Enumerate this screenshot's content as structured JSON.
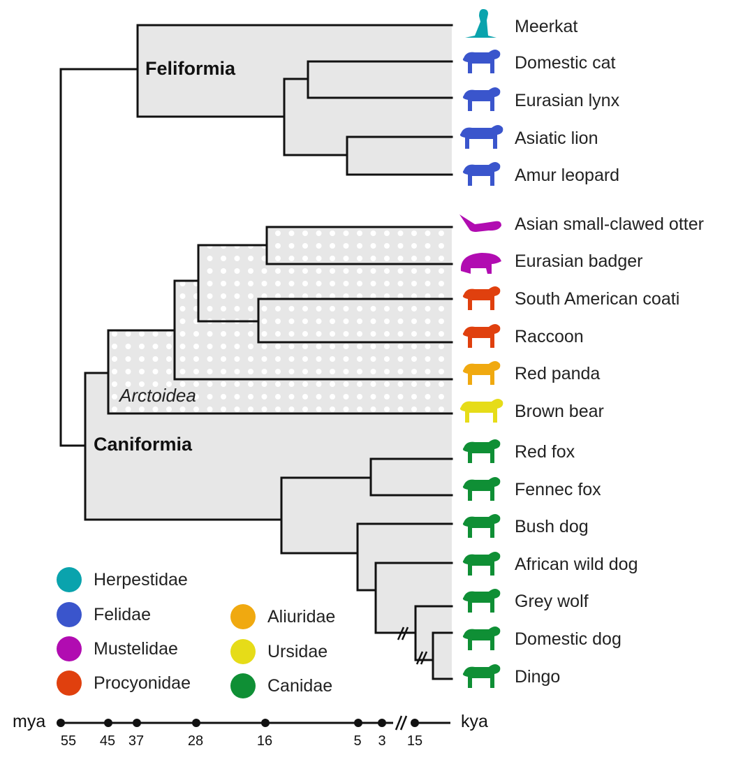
{
  "clades": {
    "feliformia": "Feliformia",
    "caniformia": "Caniformia",
    "arctoidea": "Arctoidea"
  },
  "taxa": [
    {
      "name": "Meerkat",
      "family": "Herpestidae"
    },
    {
      "name": "Domestic cat",
      "family": "Felidae"
    },
    {
      "name": "Eurasian lynx",
      "family": "Felidae"
    },
    {
      "name": "Asiatic lion",
      "family": "Felidae"
    },
    {
      "name": "Amur leopard",
      "family": "Felidae"
    },
    {
      "name": "Asian small-clawed otter",
      "family": "Mustelidae"
    },
    {
      "name": "Eurasian badger",
      "family": "Mustelidae"
    },
    {
      "name": "South American coati",
      "family": "Procyonidae"
    },
    {
      "name": "Raccoon",
      "family": "Procyonidae"
    },
    {
      "name": "Red panda",
      "family": "Aliuridae"
    },
    {
      "name": "Brown bear",
      "family": "Ursidae"
    },
    {
      "name": "Red fox",
      "family": "Canidae"
    },
    {
      "name": "Fennec fox",
      "family": "Canidae"
    },
    {
      "name": "Bush dog",
      "family": "Canidae"
    },
    {
      "name": "African wild dog",
      "family": "Canidae"
    },
    {
      "name": "Grey wolf",
      "family": "Canidae"
    },
    {
      "name": "Domestic dog",
      "family": "Canidae"
    },
    {
      "name": "Dingo",
      "family": "Canidae"
    }
  ],
  "legend": [
    {
      "name": "Herpestidae",
      "color": "#0aa3ad"
    },
    {
      "name": "Felidae",
      "color": "#3a55cc"
    },
    {
      "name": "Mustelidae",
      "color": "#b10cb1"
    },
    {
      "name": "Procyonidae",
      "color": "#e0400e"
    },
    {
      "name": "Aliuridae",
      "color": "#f0a910"
    },
    {
      "name": "Ursidae",
      "color": "#e6dc18"
    },
    {
      "name": "Canidae",
      "color": "#0f8f35"
    }
  ],
  "axis": {
    "left_unit": "mya",
    "right_unit": "kya",
    "ticks": [
      "55",
      "45",
      "37",
      "28",
      "16",
      "5",
      "3",
      "15"
    ]
  }
}
